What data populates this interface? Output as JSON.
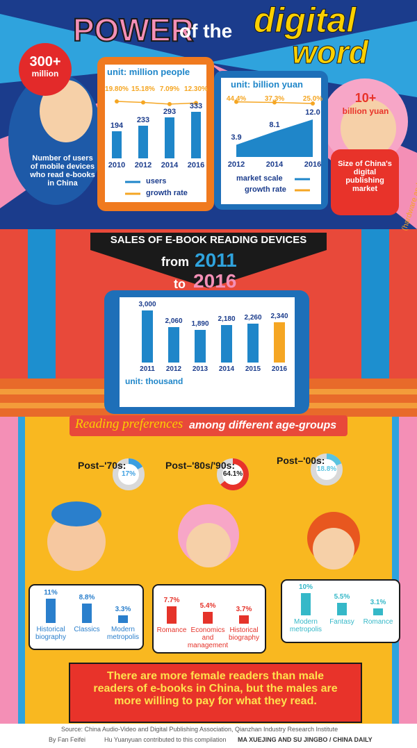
{
  "header": {
    "title_1": "POWER",
    "title_2": "of the",
    "title_3": "digital",
    "title_4": "word"
  },
  "left_badge": {
    "value": "300+",
    "unit": "million"
  },
  "left_caption": "Number of users of mobile devices who read e-books in China",
  "right_badge": {
    "value": "10+",
    "unit": "billion yuan"
  },
  "right_caption": "Size of China's digital publishing market",
  "right_note": "(hardware and software)",
  "banner": {
    "title": "SALES OF E-BOOK READING DEVICES",
    "from": "from",
    "start": "2011",
    "to": "to",
    "end": "2016"
  },
  "preferences": {
    "title_1": "Reading preferences",
    "title_2": "among different age-groups"
  },
  "message": "There are more female readers than male readers of e-books in China, but the males are more willing to pay for what they read.",
  "source": "Source: China Audio-Video and Digital Publishing Association, Qianzhan Industry Research Institute",
  "credits": {
    "author": "By Fan Feifei",
    "contributor": "Hu Yuanyuan contributed to this compilation",
    "design": "MA XUEJING AND SU JINGBO / CHINA DAILY"
  },
  "chart_data": [
    {
      "type": "bar",
      "subtitle": "unit: million people",
      "categories": [
        "2010",
        "2012",
        "2014",
        "2016"
      ],
      "series": [
        {
          "name": "users",
          "color": "#1f86c9",
          "values": [
            194,
            233,
            293,
            333
          ]
        },
        {
          "name": "growth rate",
          "type": "line",
          "color": "#f5a623",
          "values": [
            19.8,
            15.18,
            7.09,
            12.3
          ],
          "value_labels": [
            "19.80%",
            "15.18%",
            "7.09%",
            "12.30%"
          ]
        }
      ]
    },
    {
      "type": "area",
      "subtitle": "unit: billion yuan",
      "categories": [
        "2012",
        "2014",
        "2016"
      ],
      "series": [
        {
          "name": "market scale",
          "color": "#1f86c9",
          "values": [
            3.9,
            8.1,
            12
          ],
          "value_labels": [
            "3.9",
            "8.1",
            "12.0"
          ]
        },
        {
          "name": "growth rate",
          "type": "line",
          "color": "#f5a623",
          "values": [
            44.4,
            37.3,
            25
          ],
          "value_labels": [
            "44.4%",
            "37.3%",
            "25.0%"
          ]
        }
      ]
    },
    {
      "type": "bar",
      "subtitle": "unit: thousand",
      "categories": [
        "2011",
        "2012",
        "2013",
        "2014",
        "2015",
        "2016"
      ],
      "values": [
        3000,
        2060,
        1890,
        2180,
        2260,
        2340
      ],
      "value_labels": [
        "3,000",
        "2,060",
        "1,890",
        "2,180",
        "2,260",
        "2,340"
      ],
      "colors": [
        "#1f86c9",
        "#1f86c9",
        "#1f86c9",
        "#1f86c9",
        "#1f86c9",
        "#f5a623"
      ]
    },
    {
      "type": "donut",
      "categories": [
        "Post–'70s:",
        "Post–'80s/'90s:",
        "Post–'00s:"
      ],
      "values": [
        17,
        64.1,
        18.8
      ],
      "value_labels": [
        "17%",
        "64.1%",
        "18.8%"
      ],
      "colors": [
        "#3b9ee0",
        "#e8332a",
        "#5ac3e0"
      ]
    },
    {
      "type": "bar",
      "categories": [
        "Historical biography",
        "Classics",
        "Modern metropolis"
      ],
      "values": [
        11,
        8.8,
        3.3
      ],
      "value_labels": [
        "11%",
        "8.8%",
        "3.3%"
      ],
      "color": "#2a7fcc"
    },
    {
      "type": "bar",
      "categories": [
        "Romance",
        "Economics and management",
        "Historical biography"
      ],
      "values": [
        7.7,
        5.4,
        3.7
      ],
      "value_labels": [
        "7.7%",
        "5.4%",
        "3.7%"
      ],
      "color": "#e5332a"
    },
    {
      "type": "bar",
      "categories": [
        "Modern metropolis",
        "Fantasy",
        "Romance"
      ],
      "values": [
        10,
        5.5,
        3.1
      ],
      "value_labels": [
        "10%",
        "5.5%",
        "3.1%"
      ],
      "color": "#35b8c8"
    }
  ]
}
